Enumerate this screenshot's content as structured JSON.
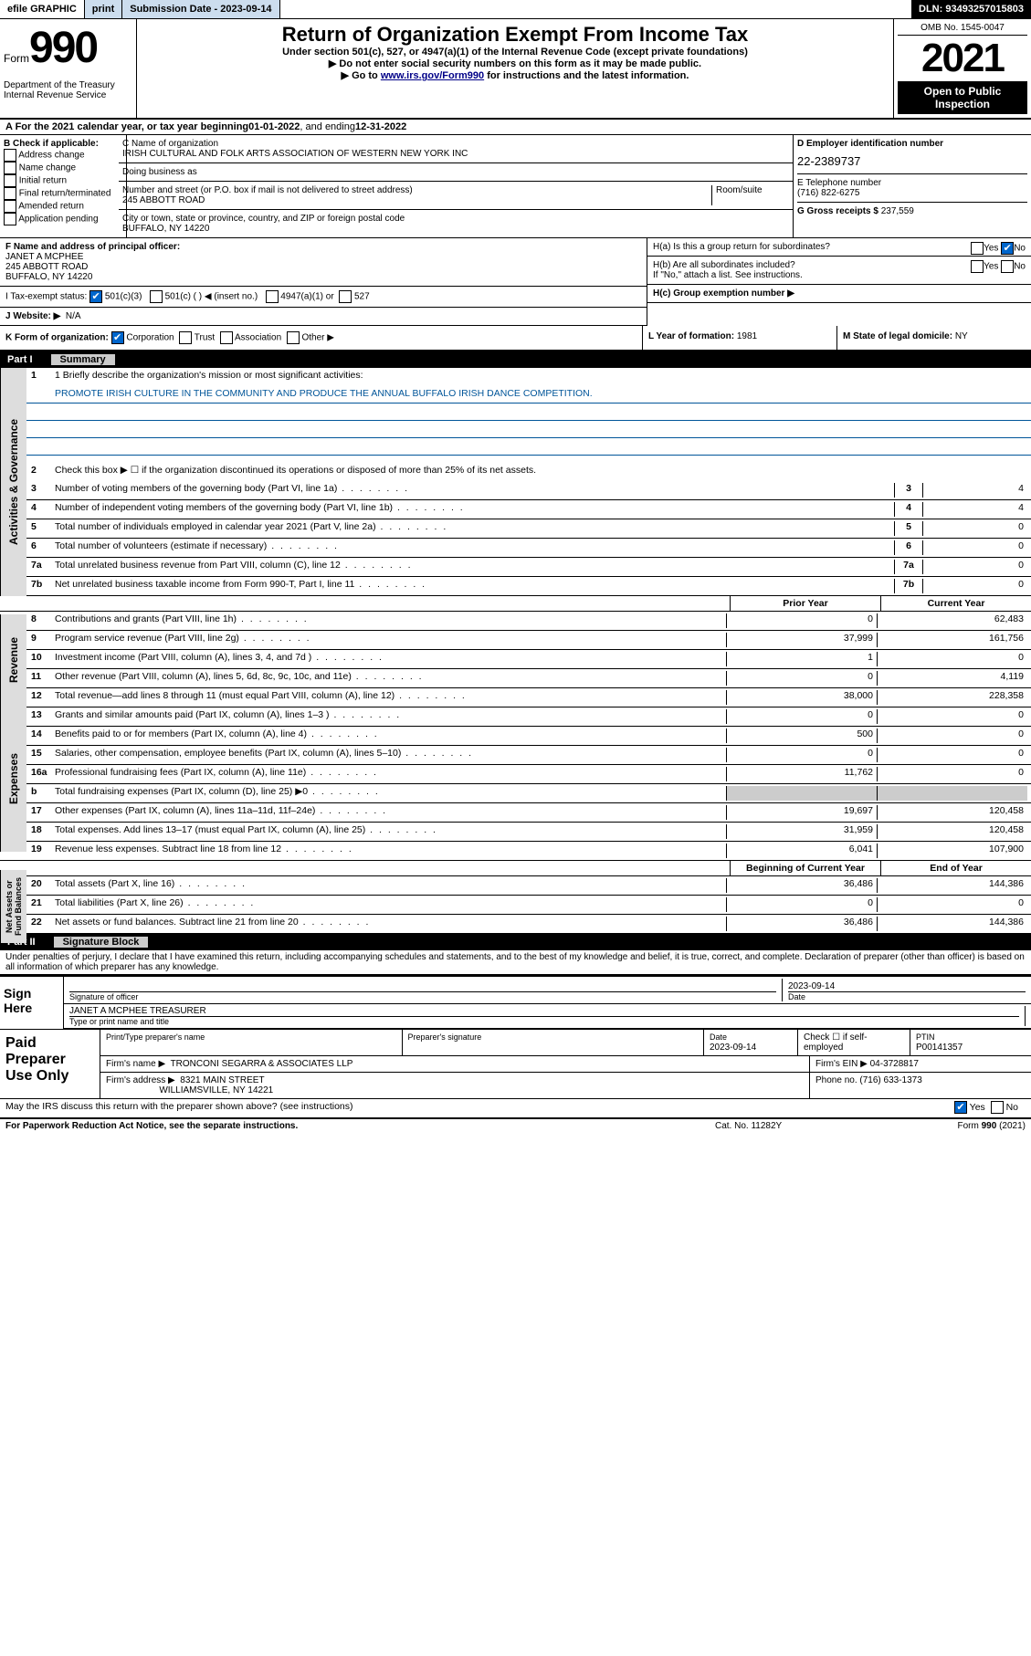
{
  "topbar": {
    "efile": "efile GRAPHIC",
    "print": "print",
    "submission_label": "Submission Date - ",
    "submission_date": "2023-09-14",
    "dln_label": "DLN: ",
    "dln": "93493257015803"
  },
  "header": {
    "form_word": "Form",
    "form_no": "990",
    "title": "Return of Organization Exempt From Income Tax",
    "subtitle": "Under section 501(c), 527, or 4947(a)(1) of the Internal Revenue Code (except private foundations)",
    "note1": "▶ Do not enter social security numbers on this form as it may be made public.",
    "note2_prefix": "▶ Go to ",
    "note2_link": "www.irs.gov/Form990",
    "note2_suffix": " for instructions and the latest information.",
    "omb": "OMB No. 1545-0047",
    "year": "2021",
    "open_public": "Open to Public Inspection",
    "dept": "Department of the Treasury Internal Revenue Service"
  },
  "section_a": {
    "prefix": "A For the 2021 calendar year, or tax year beginning ",
    "begin": "01-01-2022",
    "mid": " , and ending ",
    "end": "12-31-2022"
  },
  "section_b": {
    "label": "B Check if applicable:",
    "opts": [
      "Address change",
      "Name change",
      "Initial return",
      "Final return/terminated",
      "Amended return",
      "Application pending"
    ]
  },
  "section_c": {
    "name_label": "C Name of organization",
    "name": "IRISH CULTURAL AND FOLK ARTS ASSOCIATION OF WESTERN NEW YORK INC",
    "dba_label": "Doing business as",
    "dba": "",
    "street_label": "Number and street (or P.O. box if mail is not delivered to street address)",
    "room_label": "Room/suite",
    "street": "245 ABBOTT ROAD",
    "city_label": "City or town, state or province, country, and ZIP or foreign postal code",
    "city": "BUFFALO, NY  14220"
  },
  "section_d": {
    "ein_label": "D Employer identification number",
    "ein": "22-2389737",
    "tel_label": "E Telephone number",
    "tel": "(716) 822-6275",
    "gross_label": "G Gross receipts $ ",
    "gross": "237,559"
  },
  "section_f": {
    "label": "F Name and address of principal officer:",
    "name": "JANET A MCPHEE",
    "addr1": "245 ABBOTT ROAD",
    "addr2": "BUFFALO, NY  14220"
  },
  "section_h": {
    "a_label": "H(a)  Is this a group return for subordinates?",
    "a_yes": "Yes",
    "a_no": "No",
    "b_label": "H(b)  Are all subordinates included?",
    "b_note": "If \"No,\" attach a list. See instructions.",
    "c_label": "H(c)  Group exemption number ▶"
  },
  "section_i": {
    "label": "I   Tax-exempt status:",
    "c3": "501(c)(3)",
    "c": "501(c) (  ) ◀ (insert no.)",
    "a1": "4947(a)(1) or",
    "s527": "527"
  },
  "section_j": {
    "label": "J   Website: ▶",
    "value": "N/A"
  },
  "section_k": {
    "label": "K Form of organization:",
    "corp": "Corporation",
    "trust": "Trust",
    "assoc": "Association",
    "other": "Other ▶"
  },
  "section_l": {
    "label": "L Year of formation: ",
    "value": "1981"
  },
  "section_m": {
    "label": "M State of legal domicile: ",
    "value": "NY"
  },
  "part1": {
    "header_part": "Part I",
    "header_title": "Summary",
    "line1_label": "1  Briefly describe the organization's mission or most significant activities:",
    "mission": "PROMOTE IRISH CULTURE IN THE COMMUNITY AND PRODUCE THE ANNUAL BUFFALO IRISH DANCE COMPETITION.",
    "line2": "Check this box ▶ ☐  if the organization discontinued its operations or disposed of more than 25% of its net assets.",
    "vert1": "Activities & Governance",
    "vert2": "Revenue",
    "vert3": "Expenses",
    "vert4": "Net Assets or Fund Balances",
    "rows_single": [
      {
        "n": "3",
        "d": "Number of voting members of the governing body (Part VI, line 1a)",
        "v": "4"
      },
      {
        "n": "4",
        "d": "Number of independent voting members of the governing body (Part VI, line 1b)",
        "v": "4"
      },
      {
        "n": "5",
        "d": "Total number of individuals employed in calendar year 2021 (Part V, line 2a)",
        "v": "0"
      },
      {
        "n": "6",
        "d": "Total number of volunteers (estimate if necessary)",
        "v": "0"
      },
      {
        "n": "7a",
        "d": "Total unrelated business revenue from Part VIII, column (C), line 12",
        "v": "0"
      },
      {
        "n": "7b",
        "d": "Net unrelated business taxable income from Form 990-T, Part I, line 11",
        "v": "0"
      }
    ],
    "col_prior": "Prior Year",
    "col_current": "Current Year",
    "col_boy": "Beginning of Current Year",
    "col_eoy": "End of Year",
    "rows_rev": [
      {
        "n": "8",
        "d": "Contributions and grants (Part VIII, line 1h)",
        "p": "0",
        "c": "62,483"
      },
      {
        "n": "9",
        "d": "Program service revenue (Part VIII, line 2g)",
        "p": "37,999",
        "c": "161,756"
      },
      {
        "n": "10",
        "d": "Investment income (Part VIII, column (A), lines 3, 4, and 7d )",
        "p": "1",
        "c": "0"
      },
      {
        "n": "11",
        "d": "Other revenue (Part VIII, column (A), lines 5, 6d, 8c, 9c, 10c, and 11e)",
        "p": "0",
        "c": "4,119"
      },
      {
        "n": "12",
        "d": "Total revenue—add lines 8 through 11 (must equal Part VIII, column (A), line 12)",
        "p": "38,000",
        "c": "228,358"
      }
    ],
    "rows_exp": [
      {
        "n": "13",
        "d": "Grants and similar amounts paid (Part IX, column (A), lines 1–3 )",
        "p": "0",
        "c": "0"
      },
      {
        "n": "14",
        "d": "Benefits paid to or for members (Part IX, column (A), line 4)",
        "p": "500",
        "c": "0"
      },
      {
        "n": "15",
        "d": "Salaries, other compensation, employee benefits (Part IX, column (A), lines 5–10)",
        "p": "0",
        "c": "0"
      },
      {
        "n": "16a",
        "d": "Professional fundraising fees (Part IX, column (A), line 11e)",
        "p": "11,762",
        "c": "0"
      },
      {
        "n": "b",
        "d": "Total fundraising expenses (Part IX, column (D), line 25) ▶0",
        "p": "",
        "c": "",
        "grey": true
      },
      {
        "n": "17",
        "d": "Other expenses (Part IX, column (A), lines 11a–11d, 11f–24e)",
        "p": "19,697",
        "c": "120,458"
      },
      {
        "n": "18",
        "d": "Total expenses. Add lines 13–17 (must equal Part IX, column (A), line 25)",
        "p": "31,959",
        "c": "120,458"
      },
      {
        "n": "19",
        "d": "Revenue less expenses. Subtract line 18 from line 12",
        "p": "6,041",
        "c": "107,900"
      }
    ],
    "rows_net": [
      {
        "n": "20",
        "d": "Total assets (Part X, line 16)",
        "p": "36,486",
        "c": "144,386"
      },
      {
        "n": "21",
        "d": "Total liabilities (Part X, line 26)",
        "p": "0",
        "c": "0"
      },
      {
        "n": "22",
        "d": "Net assets or fund balances. Subtract line 21 from line 20",
        "p": "36,486",
        "c": "144,386"
      }
    ]
  },
  "part2": {
    "header_part": "Part II",
    "header_title": "Signature Block",
    "perjury": "Under penalties of perjury, I declare that I have examined this return, including accompanying schedules and statements, and to the best of my knowledge and belief, it is true, correct, and complete. Declaration of preparer (other than officer) is based on all information of which preparer has any knowledge.",
    "sign_here": "Sign Here",
    "sig_officer": "Signature of officer",
    "sig_date": "2023-09-14",
    "date_label": "Date",
    "officer_name": "JANET A MCPHEE  TREASURER",
    "officer_label": "Type or print name and title",
    "paid_label": "Paid Preparer Use Only",
    "prep_name_label": "Print/Type preparer's name",
    "prep_sig_label": "Preparer's signature",
    "prep_date_label": "Date",
    "prep_date": "2023-09-14",
    "check_self": "Check ☐ if self-employed",
    "ptin_label": "PTIN",
    "ptin": "P00141357",
    "firm_name_label": "Firm's name    ▶",
    "firm_name": "TRONCONI SEGARRA & ASSOCIATES LLP",
    "firm_ein_label": "Firm's EIN ▶",
    "firm_ein": "04-3728817",
    "firm_addr_label": "Firm's address ▶",
    "firm_addr1": "8321 MAIN STREET",
    "firm_addr2": "WILLIAMSVILLE, NY  14221",
    "phone_label": "Phone no.",
    "phone": "(716) 633-1373",
    "discuss": "May the IRS discuss this return with the preparer shown above? (see instructions)",
    "yes": "Yes",
    "no": "No"
  },
  "footer": {
    "pra": "For Paperwork Reduction Act Notice, see the separate instructions.",
    "cat": "Cat. No. 11282Y",
    "form": "Form 990 (2021)"
  },
  "colors": {
    "link": "#004488",
    "checked": "#0066cc",
    "mission_line": "#005599"
  }
}
